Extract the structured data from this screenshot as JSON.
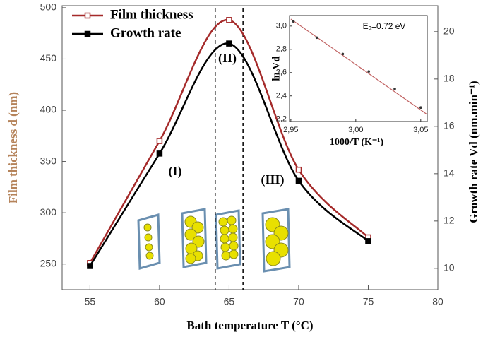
{
  "chart_data": [
    {
      "type": "line",
      "x_label": "Bath temperature T (°C)",
      "y_label": "Film thickness d (nm)",
      "y2_label": "Growth rate Vd (nm.min⁻¹)",
      "x": [
        55,
        60,
        65,
        70,
        75
      ],
      "series": [
        {
          "name": "Film thickness",
          "color": "#a52a2a",
          "values": [
            251,
            370,
            488,
            342,
            276
          ]
        },
        {
          "name": "Growth rate",
          "color": "#000000",
          "axis": "y2",
          "values": [
            10.1,
            14.85,
            19.5,
            13.7,
            11.15
          ]
        }
      ],
      "xlim": [
        53,
        80
      ],
      "xticks": [
        55,
        60,
        65,
        70,
        75,
        80
      ],
      "ylim": [
        225,
        502
      ],
      "yticks": [
        250,
        300,
        350,
        400,
        450,
        500
      ],
      "y2lim": [
        9.1,
        21.1
      ],
      "y2ticks": [
        10,
        12,
        14,
        16,
        18,
        20
      ],
      "vlines": [
        64,
        66
      ],
      "annotations": [
        "(I)",
        "(II)",
        "(III)"
      ],
      "legend": "upper left"
    },
    {
      "type": "scatter",
      "title": "Eₐ=0.72 eV",
      "x_label": "1000/T (K⁻¹)",
      "y_label": "ln Vd",
      "x": [
        2.952,
        2.97,
        2.99,
        3.01,
        3.03,
        3.05
      ],
      "values": [
        3.04,
        2.9,
        2.76,
        2.61,
        2.46,
        2.3
      ],
      "color": "#333333",
      "fit_x": [
        2.95,
        3.055
      ],
      "fit_values": [
        3.06,
        2.24
      ],
      "fit_color": "#c06060",
      "xlim": [
        2.949,
        3.055
      ],
      "xticks": [
        {
          "value": 2.95,
          "label": "2,95"
        },
        {
          "value": 3.0,
          "label": "3,00"
        },
        {
          "value": 3.05,
          "label": "3,05"
        }
      ],
      "ylim": [
        2.18,
        3.09
      ],
      "yticks": [
        {
          "value": 2.2,
          "label": "2,2"
        },
        {
          "value": 2.4,
          "label": "2,4"
        },
        {
          "value": 2.6,
          "label": "2,6"
        },
        {
          "value": 2.8,
          "label": "2,8"
        },
        {
          "value": 3.0,
          "label": "3,0"
        }
      ]
    }
  ]
}
